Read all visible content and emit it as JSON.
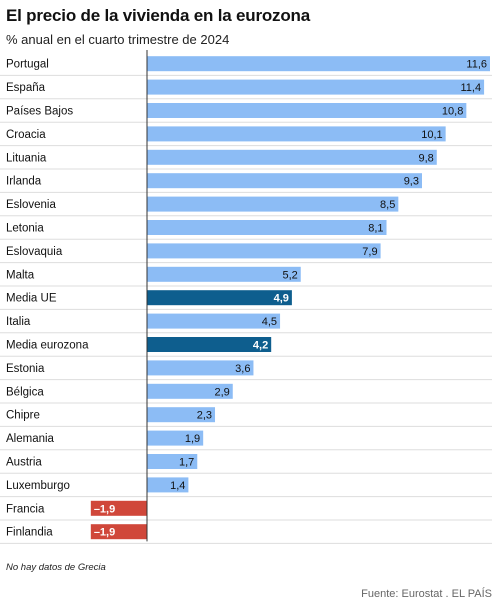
{
  "chart_data": {
    "type": "bar",
    "orientation": "horizontal",
    "title": "El precio de la vivienda en la eurozona",
    "subtitle": "% anual en el cuarto trimestre de 2024",
    "categories": [
      "Portugal",
      "España",
      "Países Bajos",
      "Croacia",
      "Lituania",
      "Irlanda",
      "Eslovenia",
      "Letonia",
      "Eslovaquia",
      "Malta",
      "Media UE",
      "Italia",
      "Media eurozona",
      "Estonia",
      "Bélgica",
      "Chipre",
      "Alemania",
      "Austria",
      "Luxemburgo",
      "Francia",
      "Finlandia"
    ],
    "values": [
      11.6,
      11.4,
      10.8,
      10.1,
      9.8,
      9.3,
      8.5,
      8.1,
      7.9,
      5.2,
      4.9,
      4.5,
      4.2,
      3.6,
      2.9,
      2.3,
      1.9,
      1.7,
      1.4,
      -1.9,
      -1.9
    ],
    "labels": [
      "11,6",
      "11,4",
      "10,8",
      "10,1",
      "9,8",
      "9,3",
      "8,5",
      "8,1",
      "7,9",
      "5,2",
      "4,9",
      "4,5",
      "4,2",
      "3,6",
      "2,9",
      "2,3",
      "1,9",
      "1,7",
      "1,4",
      "–1,9",
      "–1,9"
    ],
    "highlight": [
      "Media UE",
      "Media eurozona"
    ],
    "xlim": [
      -1.9,
      11.6
    ],
    "colors": {
      "positive": "#8cbcf5",
      "average": "#0e5e8e",
      "negative": "#d0473a",
      "gridline": "#dddddd",
      "axis": "#333333"
    }
  },
  "note": "No hay datos de Grecia",
  "source": "Fuente: Eurostat . EL PAÍS"
}
